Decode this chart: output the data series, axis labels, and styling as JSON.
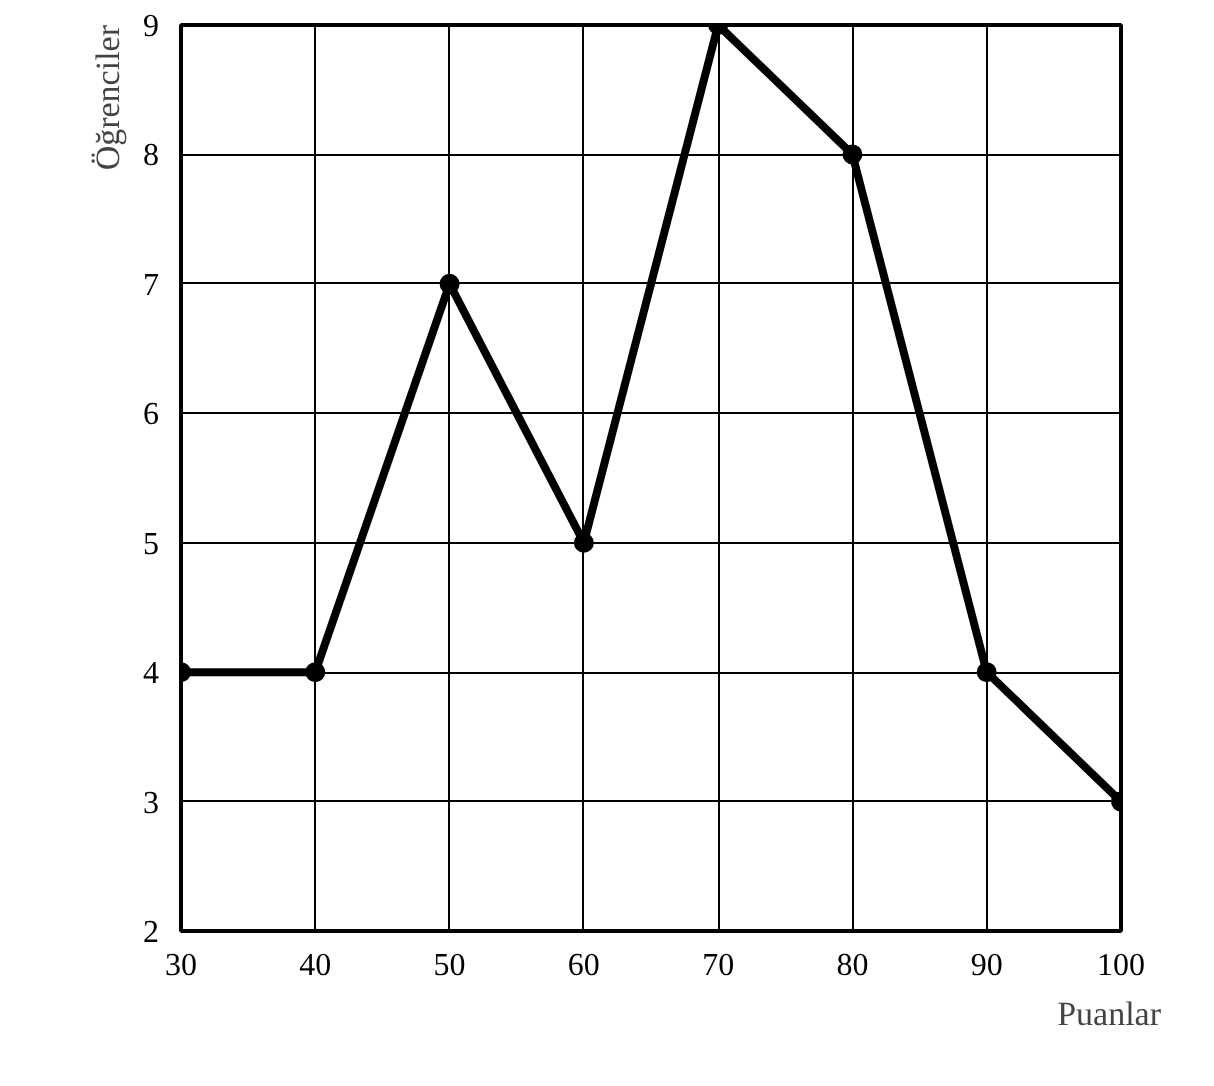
{
  "chart_data": {
    "type": "line",
    "xlabel": "Puanlar",
    "ylabel": "Öğrenciler",
    "x": [
      30,
      40,
      50,
      60,
      70,
      80,
      90,
      100
    ],
    "series": [
      {
        "color": "#000000",
        "values": [
          4,
          4,
          7,
          5,
          9,
          8,
          4,
          3
        ]
      }
    ],
    "xlim": [
      30,
      100
    ],
    "xticks": [
      30,
      40,
      50,
      60,
      70,
      80,
      90,
      100
    ],
    "ylim": [
      2,
      9
    ],
    "yticks": [
      2,
      3,
      4,
      5,
      6,
      7,
      8,
      9
    ],
    "grid": true,
    "marker": "circle",
    "line_style": "solid"
  }
}
